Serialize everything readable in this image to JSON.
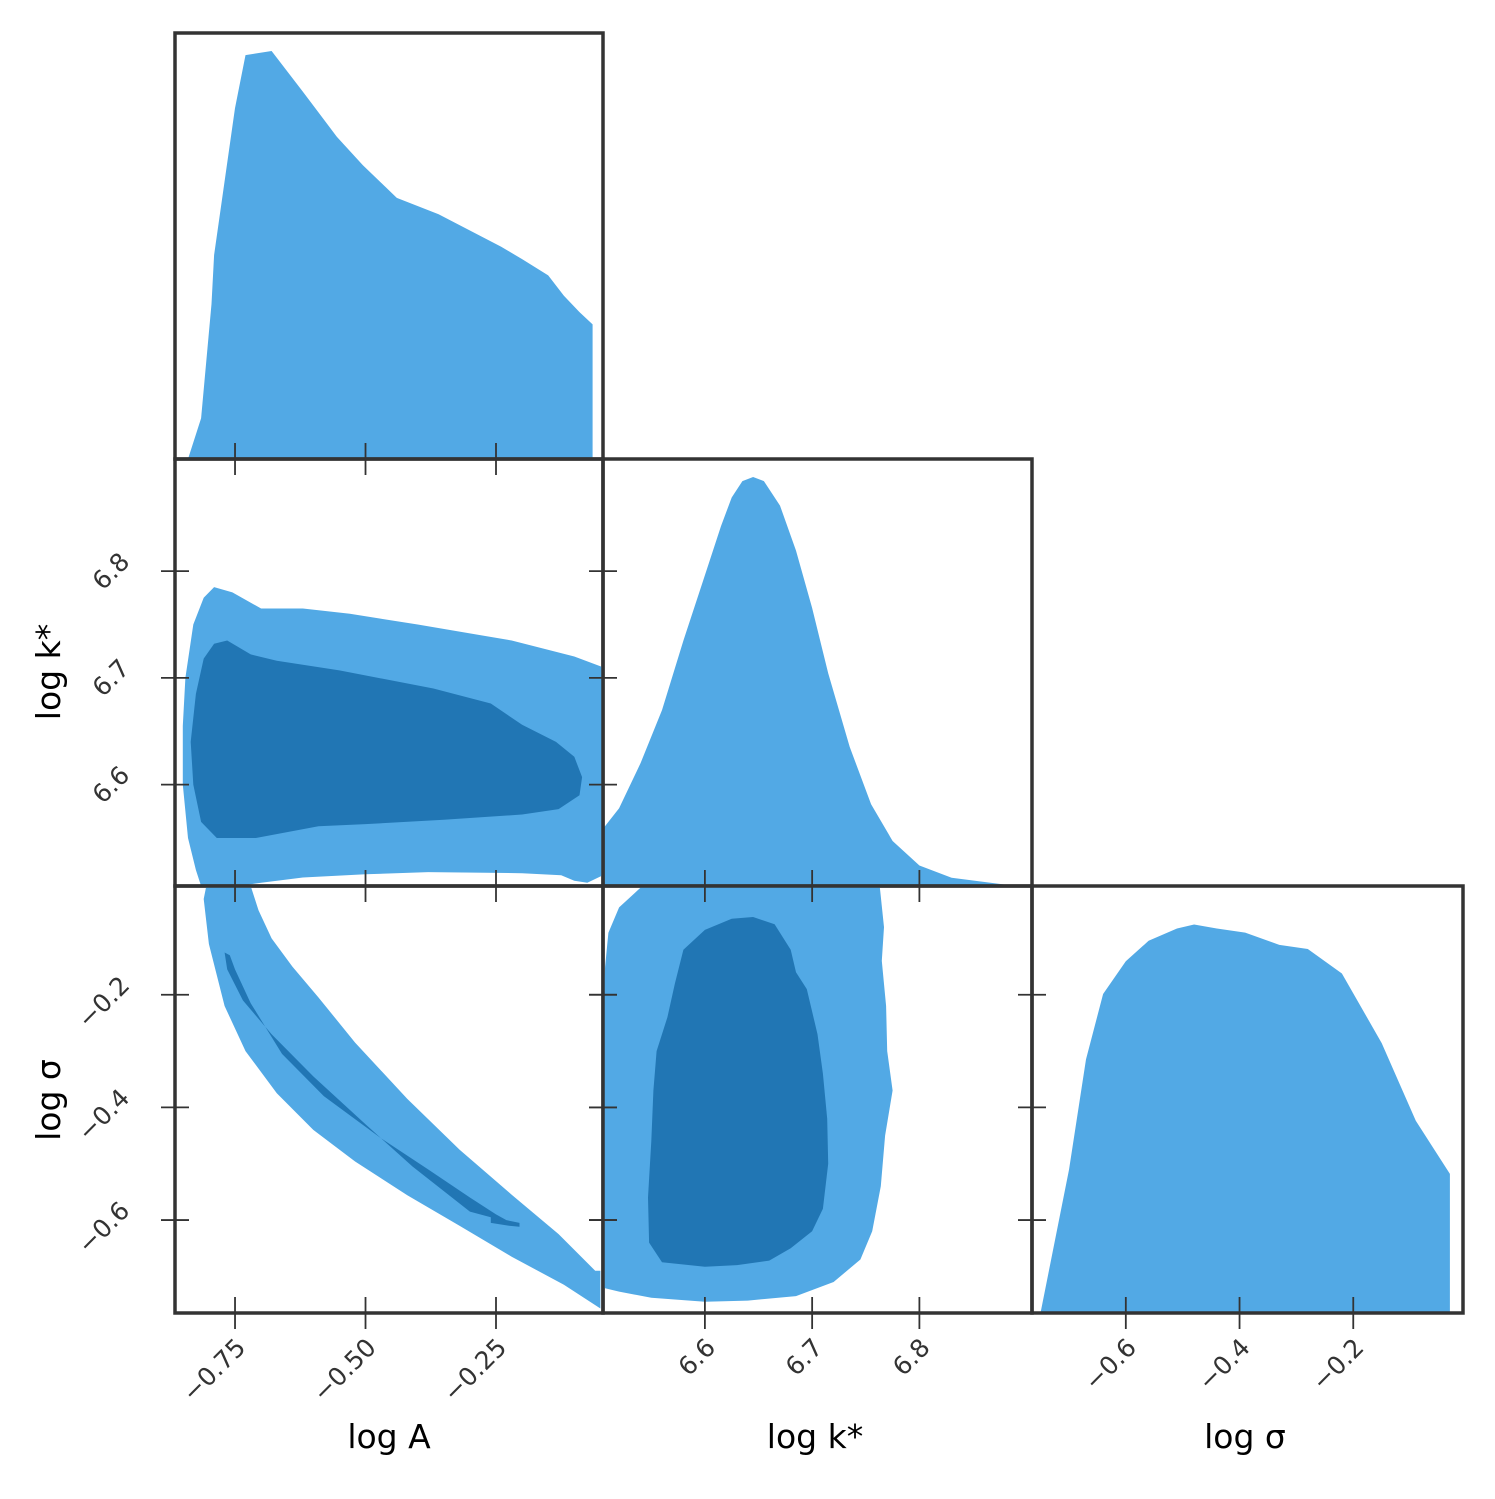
{
  "colors": {
    "outer": "#52a9e5",
    "inner": "#2176b4",
    "frame": "#333333",
    "text": "#333333"
  },
  "chart_data": {
    "type": "corner",
    "parameters": [
      {
        "key": "logA",
        "label": "log A",
        "range": [
          -0.865,
          -0.045
        ],
        "ticks": [
          -0.75,
          -0.5,
          -0.25
        ],
        "tick_labels": [
          "−0.75",
          "−0.50",
          "−0.25"
        ]
      },
      {
        "key": "logk",
        "label": "log k*",
        "range": [
          6.505,
          6.905
        ],
        "ticks": [
          6.6,
          6.7,
          6.8
        ],
        "tick_labels": [
          "6.6",
          "6.7",
          "6.8"
        ]
      },
      {
        "key": "logsigma",
        "label": "log σ",
        "range": [
          -0.765,
          -0.007
        ],
        "ticks": [
          -0.6,
          -0.4,
          -0.2
        ],
        "tick_labels": [
          "−0.6",
          "−0.4",
          "−0.2"
        ]
      }
    ],
    "x_axis_labels": [
      "log A",
      "log k*",
      "log σ"
    ],
    "y_axis_labels": [
      "log k*",
      "log σ"
    ],
    "panels": [
      {
        "id": "logA-marginal",
        "kind": "marginal",
        "row": 0,
        "col": 0,
        "param": "logA",
        "x": [
          -0.84,
          -0.815,
          -0.795,
          -0.79,
          -0.75,
          -0.73,
          -0.68,
          -0.62,
          -0.555,
          -0.505,
          -0.44,
          -0.36,
          -0.3,
          -0.24,
          -0.2,
          -0.15,
          -0.12,
          -0.09,
          -0.065
        ],
        "density": [
          0.0,
          0.1,
          0.38,
          0.5,
          0.86,
          0.99,
          1.0,
          0.9,
          0.79,
          0.72,
          0.64,
          0.6,
          0.56,
          0.52,
          0.49,
          0.45,
          0.4,
          0.36,
          0.33
        ]
      },
      {
        "id": "logk-marginal",
        "kind": "marginal",
        "row": 1,
        "col": 1,
        "param": "logk",
        "x": [
          6.505,
          6.52,
          6.54,
          6.56,
          6.58,
          6.6,
          6.615,
          6.625,
          6.635,
          6.645,
          6.655,
          6.67,
          6.685,
          6.7,
          6.715,
          6.735,
          6.755,
          6.775,
          6.8,
          6.83,
          6.86,
          6.89
        ],
        "density": [
          0.14,
          0.19,
          0.3,
          0.43,
          0.6,
          0.76,
          0.88,
          0.95,
          0.99,
          1.0,
          0.99,
          0.93,
          0.82,
          0.68,
          0.52,
          0.34,
          0.2,
          0.11,
          0.05,
          0.02,
          0.01,
          0.0
        ]
      },
      {
        "id": "logsigma-marginal",
        "kind": "marginal",
        "row": 2,
        "col": 2,
        "param": "logsigma",
        "x": [
          -0.75,
          -0.7,
          -0.67,
          -0.64,
          -0.6,
          -0.56,
          -0.51,
          -0.48,
          -0.44,
          -0.39,
          -0.33,
          -0.28,
          -0.22,
          -0.15,
          -0.09,
          -0.03
        ],
        "density": [
          0.0,
          0.35,
          0.62,
          0.78,
          0.86,
          0.91,
          0.94,
          0.95,
          0.94,
          0.93,
          0.9,
          0.89,
          0.83,
          0.66,
          0.47,
          0.34
        ]
      },
      {
        "id": "logk-vs-logA",
        "kind": "contour",
        "row": 1,
        "col": 0,
        "x": "logA",
        "y": "logk",
        "outer": [
          [
            -0.825,
            6.52
          ],
          [
            -0.84,
            6.55
          ],
          [
            -0.85,
            6.6
          ],
          [
            -0.85,
            6.655
          ],
          [
            -0.845,
            6.7
          ],
          [
            -0.83,
            6.75
          ],
          [
            -0.81,
            6.775
          ],
          [
            -0.79,
            6.785
          ],
          [
            -0.755,
            6.78
          ],
          [
            -0.7,
            6.765
          ],
          [
            -0.62,
            6.765
          ],
          [
            -0.53,
            6.76
          ],
          [
            -0.4,
            6.75
          ],
          [
            -0.22,
            6.735
          ],
          [
            -0.1,
            6.72
          ],
          [
            -0.045,
            6.71
          ],
          [
            -0.045,
            6.515
          ],
          [
            -0.075,
            6.508
          ],
          [
            -0.1,
            6.51
          ],
          [
            -0.125,
            6.515
          ],
          [
            -0.2,
            6.517
          ],
          [
            -0.38,
            6.518
          ],
          [
            -0.5,
            6.516
          ],
          [
            -0.62,
            6.513
          ],
          [
            -0.7,
            6.508
          ],
          [
            -0.73,
            6.506
          ],
          [
            -0.74,
            6.505
          ],
          [
            -0.815,
            6.505
          ]
        ],
        "inner": [
          [
            -0.785,
            6.55
          ],
          [
            -0.815,
            6.565
          ],
          [
            -0.83,
            6.6
          ],
          [
            -0.835,
            6.64
          ],
          [
            -0.825,
            6.685
          ],
          [
            -0.81,
            6.718
          ],
          [
            -0.79,
            6.732
          ],
          [
            -0.765,
            6.735
          ],
          [
            -0.72,
            6.722
          ],
          [
            -0.67,
            6.716
          ],
          [
            -0.55,
            6.707
          ],
          [
            -0.37,
            6.69
          ],
          [
            -0.26,
            6.676
          ],
          [
            -0.2,
            6.656
          ],
          [
            -0.135,
            6.64
          ],
          [
            -0.1,
            6.626
          ],
          [
            -0.085,
            6.607
          ],
          [
            -0.09,
            6.59
          ],
          [
            -0.13,
            6.577
          ],
          [
            -0.2,
            6.572
          ],
          [
            -0.35,
            6.567
          ],
          [
            -0.5,
            6.563
          ],
          [
            -0.59,
            6.561
          ],
          [
            -0.71,
            6.55
          ]
        ]
      },
      {
        "id": "logsigma-vs-logA",
        "kind": "contour",
        "row": 2,
        "col": 0,
        "x": "logA",
        "y": "logsigma",
        "outer": [
          [
            -0.805,
            -0.007
          ],
          [
            -0.72,
            -0.007
          ],
          [
            -0.705,
            -0.05
          ],
          [
            -0.68,
            -0.1
          ],
          [
            -0.64,
            -0.15
          ],
          [
            -0.59,
            -0.205
          ],
          [
            -0.52,
            -0.285
          ],
          [
            -0.42,
            -0.385
          ],
          [
            -0.32,
            -0.475
          ],
          [
            -0.22,
            -0.555
          ],
          [
            -0.13,
            -0.625
          ],
          [
            -0.06,
            -0.69
          ],
          [
            -0.05,
            -0.69
          ],
          [
            -0.05,
            -0.757
          ],
          [
            -0.12,
            -0.715
          ],
          [
            -0.22,
            -0.665
          ],
          [
            -0.32,
            -0.61
          ],
          [
            -0.42,
            -0.556
          ],
          [
            -0.52,
            -0.496
          ],
          [
            -0.6,
            -0.44
          ],
          [
            -0.67,
            -0.375
          ],
          [
            -0.73,
            -0.3
          ],
          [
            -0.77,
            -0.22
          ],
          [
            -0.8,
            -0.11
          ],
          [
            -0.81,
            -0.03
          ]
        ],
        "inner": [
          [
            -0.77,
            -0.125
          ],
          [
            -0.765,
            -0.155
          ],
          [
            -0.735,
            -0.21
          ],
          [
            -0.68,
            -0.27
          ],
          [
            -0.6,
            -0.345
          ],
          [
            -0.5,
            -0.43
          ],
          [
            -0.41,
            -0.505
          ],
          [
            -0.3,
            -0.585
          ],
          [
            -0.26,
            -0.595
          ],
          [
            -0.26,
            -0.605
          ],
          [
            -0.225,
            -0.61
          ],
          [
            -0.205,
            -0.612
          ],
          [
            -0.205,
            -0.605
          ],
          [
            -0.23,
            -0.6
          ],
          [
            -0.25,
            -0.59
          ],
          [
            -0.3,
            -0.56
          ],
          [
            -0.38,
            -0.51
          ],
          [
            -0.47,
            -0.455
          ],
          [
            -0.58,
            -0.38
          ],
          [
            -0.66,
            -0.305
          ],
          [
            -0.72,
            -0.215
          ],
          [
            -0.75,
            -0.155
          ],
          [
            -0.76,
            -0.13
          ]
        ]
      },
      {
        "id": "logsigma-vs-logk",
        "kind": "contour",
        "row": 2,
        "col": 1,
        "x": "logk",
        "y": "logsigma",
        "outer": [
          [
            6.54,
            -0.007
          ],
          [
            6.54,
            -0.01
          ],
          [
            6.52,
            -0.045
          ],
          [
            6.51,
            -0.09
          ],
          [
            6.507,
            -0.15
          ],
          [
            6.505,
            -0.22
          ],
          [
            6.505,
            -0.72
          ],
          [
            6.52,
            -0.727
          ],
          [
            6.55,
            -0.738
          ],
          [
            6.6,
            -0.745
          ],
          [
            6.64,
            -0.743
          ],
          [
            6.685,
            -0.735
          ],
          [
            6.72,
            -0.71
          ],
          [
            6.745,
            -0.67
          ],
          [
            6.756,
            -0.62
          ],
          [
            6.764,
            -0.54
          ],
          [
            6.768,
            -0.45
          ],
          [
            6.775,
            -0.37
          ],
          [
            6.77,
            -0.3
          ],
          [
            6.769,
            -0.22
          ],
          [
            6.765,
            -0.14
          ],
          [
            6.767,
            -0.08
          ],
          [
            6.763,
            -0.007
          ]
        ],
        "inner": [
          [
            6.625,
            -0.065
          ],
          [
            6.6,
            -0.085
          ],
          [
            6.58,
            -0.12
          ],
          [
            6.572,
            -0.18
          ],
          [
            6.565,
            -0.24
          ],
          [
            6.555,
            -0.3
          ],
          [
            6.552,
            -0.37
          ],
          [
            6.55,
            -0.46
          ],
          [
            6.547,
            -0.56
          ],
          [
            6.548,
            -0.64
          ],
          [
            6.56,
            -0.675
          ],
          [
            6.6,
            -0.683
          ],
          [
            6.63,
            -0.68
          ],
          [
            6.66,
            -0.672
          ],
          [
            6.68,
            -0.65
          ],
          [
            6.7,
            -0.62
          ],
          [
            6.71,
            -0.58
          ],
          [
            6.715,
            -0.5
          ],
          [
            6.714,
            -0.42
          ],
          [
            6.71,
            -0.34
          ],
          [
            6.705,
            -0.27
          ],
          [
            6.695,
            -0.19
          ],
          [
            6.685,
            -0.16
          ],
          [
            6.68,
            -0.12
          ],
          [
            6.665,
            -0.075
          ],
          [
            6.645,
            -0.062
          ]
        ]
      }
    ]
  }
}
